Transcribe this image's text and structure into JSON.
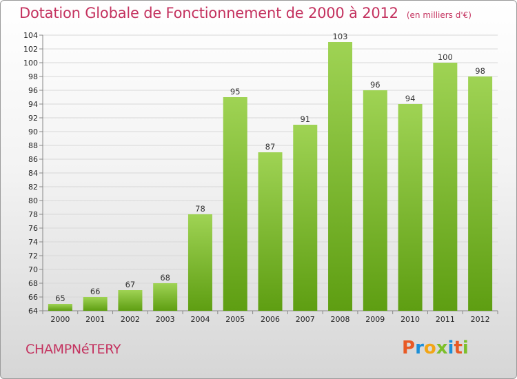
{
  "header": {
    "title": "Dotation Globale de Fonctionnement de 2000 à 2012",
    "subtitle": "(en milliers d'€)"
  },
  "footer": {
    "commune": "CHAMPNéTERY",
    "brand": "Proxiti"
  },
  "colors": {
    "title": "#c4325f",
    "bar_light": "#9fd354",
    "bar_dark": "#5e9e12"
  },
  "chart_data": {
    "type": "bar",
    "title": "Dotation Globale de Fonctionnement de 2000 à 2012",
    "subtitle": "(en milliers d'€)",
    "categories": [
      "2000",
      "2001",
      "2002",
      "2003",
      "2004",
      "2005",
      "2006",
      "2007",
      "2008",
      "2009",
      "2010",
      "2011",
      "2012"
    ],
    "values": [
      65,
      66,
      67,
      68,
      78,
      95,
      87,
      91,
      103,
      96,
      94,
      100,
      98
    ],
    "ylim": [
      64,
      104
    ],
    "yticks": [
      64,
      66,
      68,
      70,
      72,
      74,
      76,
      78,
      80,
      82,
      84,
      86,
      88,
      90,
      92,
      94,
      96,
      98,
      100,
      102,
      104
    ],
    "grid": true,
    "data_labels": true,
    "xlabel": "",
    "ylabel": ""
  }
}
